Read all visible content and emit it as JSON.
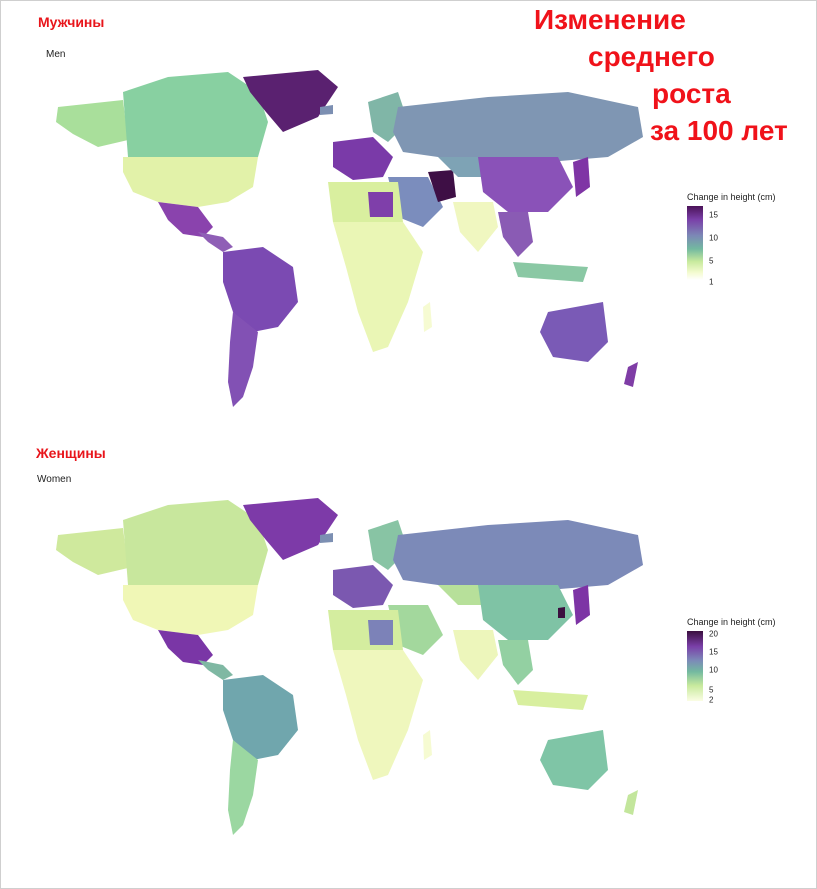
{
  "headline": {
    "line1": "Изменение",
    "line2": "среднего",
    "line3": "роста",
    "line4": "за 100 лет",
    "color": "#f0121a"
  },
  "men": {
    "section_title": "Мужчины",
    "subtitle": "Men",
    "legend": {
      "title": "Change in height (cm)",
      "ticks": [
        "15",
        "10",
        "5",
        "1"
      ],
      "range": [
        1,
        16
      ]
    }
  },
  "women": {
    "section_title": "Женщины",
    "subtitle": "Women",
    "legend": {
      "title": "Change in height (cm)",
      "ticks": [
        "20",
        "15",
        "10",
        "5",
        "2"
      ],
      "range": [
        2,
        20
      ]
    }
  },
  "colorscale": {
    "name": "viridis-like sequential (light yellow → green → blue-purple → dark purple)",
    "stops": [
      "#ffffd9",
      "#e3f3a8",
      "#9fdba0",
      "#6fb8a0",
      "#7b8fb4",
      "#7a5cb0",
      "#6a2c92",
      "#3b0f3f"
    ]
  },
  "chart_data": [
    {
      "type": "map",
      "title": "Men",
      "legend_title": "Change in height (cm)",
      "value_range": [
        1,
        16
      ],
      "regions": [
        {
          "region": "Greenland",
          "value": 15
        },
        {
          "region": "Canada",
          "value": 8
        },
        {
          "region": "USA",
          "value": 6
        },
        {
          "region": "Mexico",
          "value": 12
        },
        {
          "region": "South America",
          "value": 11
        },
        {
          "region": "Europe",
          "value": 13
        },
        {
          "region": "Russia",
          "value": 9
        },
        {
          "region": "Iran",
          "value": 16
        },
        {
          "region": "China",
          "value": 11
        },
        {
          "region": "Japan",
          "value": 12
        },
        {
          "region": "India",
          "value": 3
        },
        {
          "region": "Africa",
          "value": 3
        },
        {
          "region": "Australia",
          "value": 11
        }
      ]
    },
    {
      "type": "map",
      "title": "Women",
      "legend_title": "Change in height (cm)",
      "value_range": [
        2,
        20
      ],
      "regions": [
        {
          "region": "Greenland",
          "value": 16
        },
        {
          "region": "Canada",
          "value": 6
        },
        {
          "region": "USA",
          "value": 4
        },
        {
          "region": "Mexico",
          "value": 16
        },
        {
          "region": "South America",
          "value": 11
        },
        {
          "region": "Europe",
          "value": 13
        },
        {
          "region": "Russia",
          "value": 12
        },
        {
          "region": "South Korea",
          "value": 20
        },
        {
          "region": "China",
          "value": 9
        },
        {
          "region": "Japan",
          "value": 15
        },
        {
          "region": "India",
          "value": 4
        },
        {
          "region": "Africa",
          "value": 4
        },
        {
          "region": "Australia",
          "value": 9
        }
      ]
    }
  ]
}
